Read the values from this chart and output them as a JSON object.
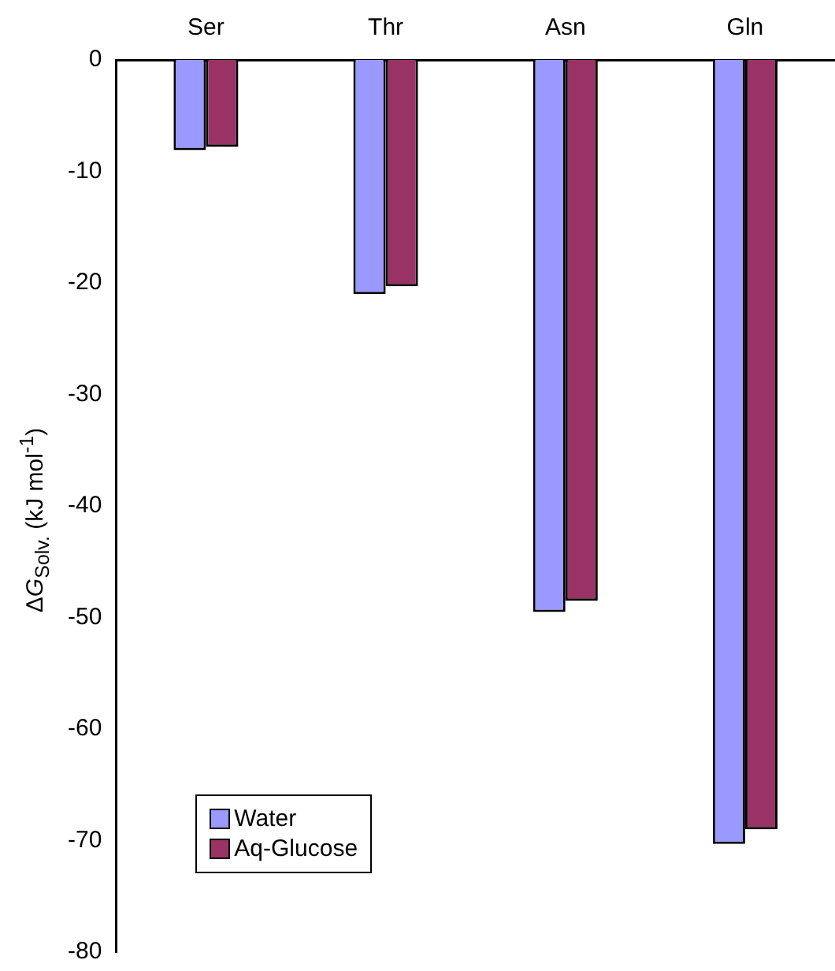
{
  "chart_data": {
    "type": "bar",
    "categories": [
      "Ser",
      "Thr",
      "Asn",
      "Gln"
    ],
    "ylabel": "ΔG$_{Solv.}$ (kJ mol$^{-1}$)",
    "series": [
      {
        "name": "Water",
        "color": "#9999ff",
        "values": [
          -8.1,
          -21.0,
          -49.5,
          -70.3
        ]
      },
      {
        "name": "Aq-Glucose",
        "color": "#993366",
        "values": [
          -7.8,
          -20.3,
          -48.5,
          -69.0
        ]
      }
    ],
    "ylim": [
      -80,
      0
    ],
    "yticks": [
      -80,
      -70,
      -60,
      -50,
      -40,
      -30,
      -20,
      -10,
      0
    ],
    "grid": false,
    "legend": "bottom left"
  }
}
